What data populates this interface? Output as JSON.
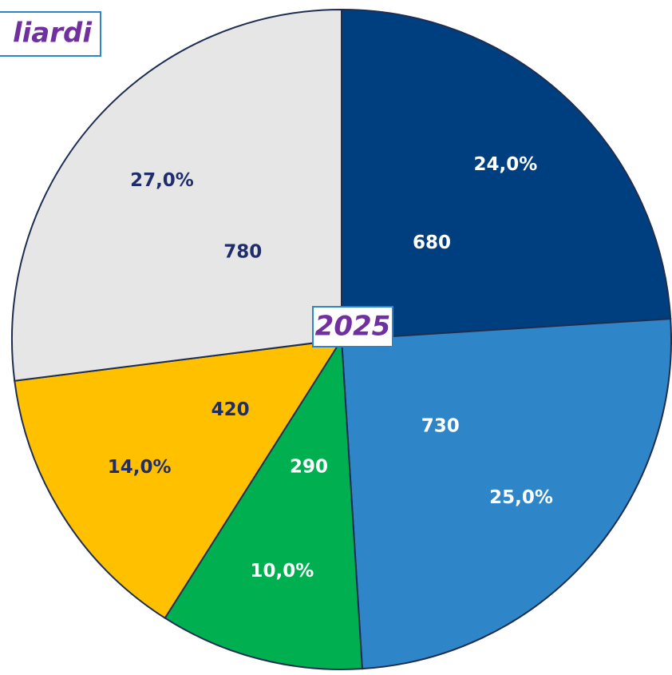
{
  "chart_data": {
    "type": "pie",
    "title": "liardi",
    "center_label": "2025",
    "values": [
      24.0,
      25.0,
      10.0,
      14.0,
      27.0
    ],
    "value_labels": [
      "24,0%",
      "25,0%",
      "10,0%",
      "14,0%",
      "27,0%"
    ],
    "amounts": [
      680,
      730,
      290,
      420,
      780
    ],
    "colors": [
      "#003f7f",
      "#2e86c8",
      "#00b050",
      "#ffc000",
      "#e6e6e6"
    ],
    "label_colors": [
      "#ffffff",
      "#ffffff",
      "#ffffff",
      "#1f2d6b",
      "#1f2d6b"
    ]
  }
}
